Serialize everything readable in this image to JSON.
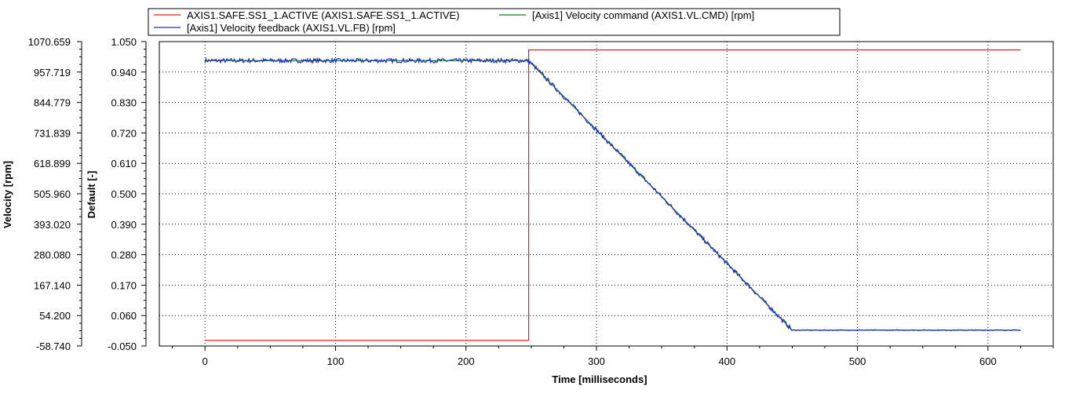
{
  "chart_data": {
    "type": "line",
    "xlabel": "Time [milliseconds]",
    "xlim": [
      -35,
      650
    ],
    "x_ticks": [
      "0",
      "100",
      "200",
      "300",
      "400",
      "500",
      "600"
    ],
    "y_left": {
      "label": "Velocity [rpm]",
      "lim": [
        -58.74,
        1070.659
      ],
      "ticks": [
        "1070.659",
        "957.719",
        "844.779",
        "731.839",
        "618.899",
        "505.960",
        "393.020",
        "280.080",
        "167.140",
        "54.200",
        "-58.740"
      ]
    },
    "y_right": {
      "label": "Default [-]",
      "lim": [
        -0.05,
        1.05
      ],
      "ticks": [
        "1.050",
        "0.940",
        "0.830",
        "0.720",
        "0.610",
        "0.500",
        "0.390",
        "0.280",
        "0.170",
        "0.060",
        "-0.050"
      ]
    },
    "grid": true,
    "legend": {
      "placement": "top",
      "entries": [
        {
          "label": "AXIS1.SAFE.SS1_1.ACTIVE (AXIS1.SAFE.SS1_1.ACTIVE)",
          "color": "#e0201b"
        },
        {
          "label": "[Axis1] Velocity command (AXIS1.VL.CMD) [rpm]",
          "color": "#1a7a1a"
        },
        {
          "label": "[Axis1] Velocity feedback (AXIS1.VL.FB) [rpm]",
          "color": "#1f2fbf"
        }
      ]
    },
    "series": [
      {
        "name": "AXIS1.SAFE.SS1_1.ACTIVE (AXIS1.SAFE.SS1_1.ACTIVE)",
        "axis": "right",
        "color": "#e0201b",
        "step": true,
        "x": [
          0,
          248,
          248,
          625
        ],
        "y": [
          -0.03,
          -0.03,
          1.02,
          1.02
        ]
      },
      {
        "name": "[Axis1] Velocity command (AXIS1.VL.CMD) [rpm]",
        "axis": "left",
        "color": "#1a7a1a",
        "x": [
          0,
          248,
          450,
          625
        ],
        "y": [
          1000,
          1000,
          0,
          0
        ]
      },
      {
        "name": "[Axis1] Velocity feedback (AXIS1.VL.FB) [rpm]",
        "axis": "left",
        "color": "#1f2fbf",
        "noise": 8,
        "x": [
          0,
          248,
          450,
          625
        ],
        "y": [
          1000,
          1000,
          0,
          0
        ]
      }
    ]
  }
}
